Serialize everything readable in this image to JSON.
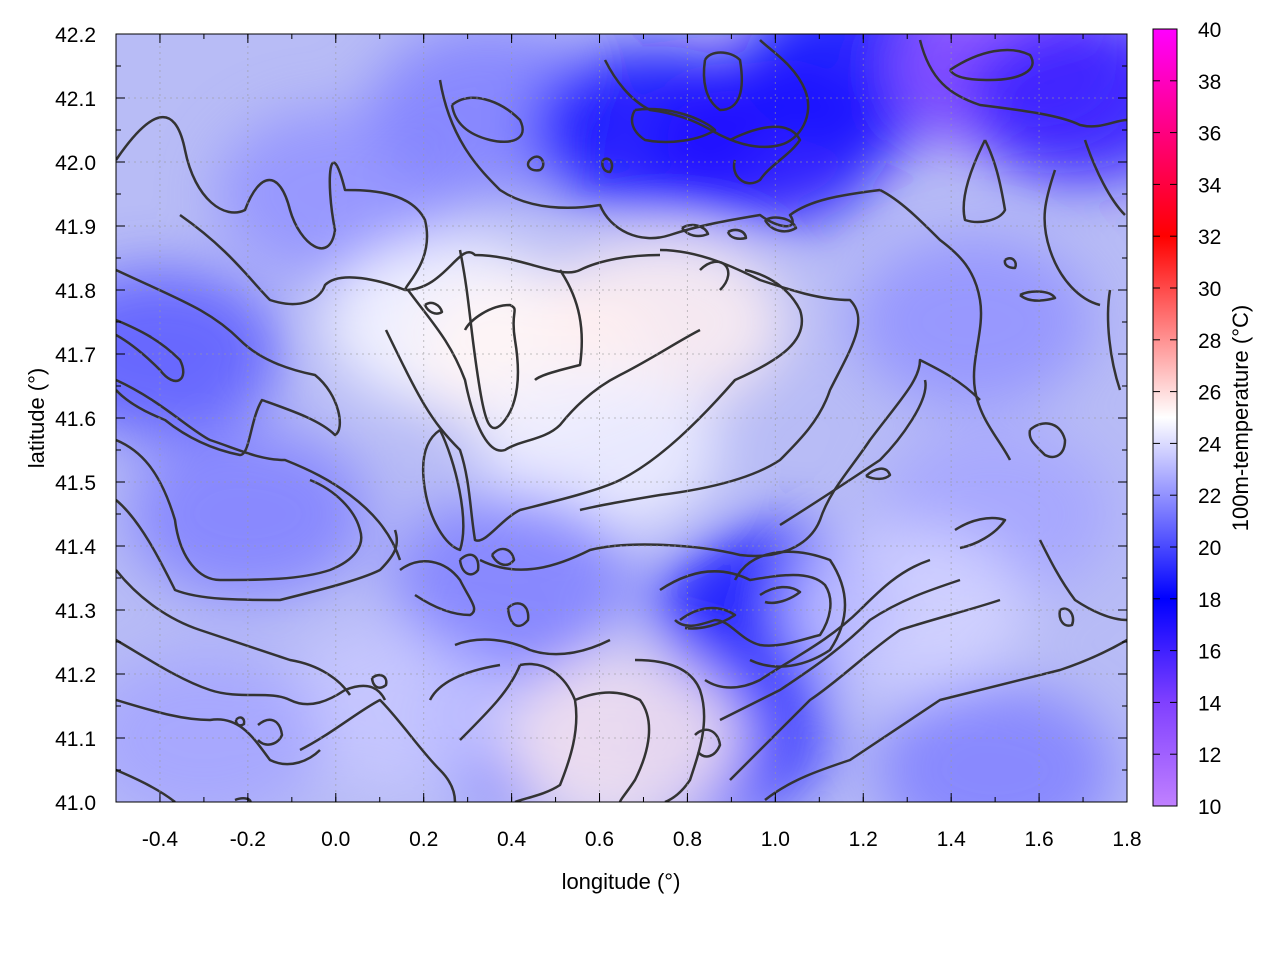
{
  "chart_data": {
    "type": "heatmap",
    "xlabel": "longitude (°)",
    "ylabel": "latitude (°)",
    "colorbar_label": "100m-temperature (°C)",
    "xlim": [
      -0.5,
      1.8
    ],
    "ylim": [
      41.0,
      42.2
    ],
    "x_ticks": [
      -0.4,
      -0.2,
      0.0,
      0.2,
      0.4,
      0.6,
      0.8,
      1.0,
      1.2,
      1.4,
      1.6,
      1.8
    ],
    "x_tick_labels": [
      "-0.4",
      "-0.2",
      "0.0",
      "0.2",
      "0.4",
      "0.6",
      "0.8",
      "1.0",
      "1.2",
      "1.4",
      "1.6",
      "1.8"
    ],
    "y_ticks": [
      41.0,
      41.1,
      41.2,
      41.3,
      41.4,
      41.5,
      41.6,
      41.7,
      41.8,
      41.9,
      42.0,
      42.1,
      42.2
    ],
    "y_tick_labels": [
      "41.0",
      "41.1",
      "41.2",
      "41.3",
      "41.4",
      "41.5",
      "41.6",
      "41.7",
      "41.8",
      "41.9",
      "42.0",
      "42.1",
      "42.2"
    ],
    "colorbar_range": [
      10,
      40
    ],
    "colorbar_ticks": [
      10,
      12,
      14,
      16,
      18,
      20,
      22,
      24,
      26,
      28,
      30,
      32,
      34,
      36,
      38,
      40
    ],
    "colorbar_tick_labels": [
      "10",
      "12",
      "14",
      "16",
      "18",
      "20",
      "22",
      "24",
      "26",
      "28",
      "30",
      "32",
      "34",
      "36",
      "38",
      "40"
    ],
    "colormap": [
      {
        "value": 10,
        "color": "#c080ff"
      },
      {
        "value": 14,
        "color": "#8040ff"
      },
      {
        "value": 18,
        "color": "#0000ff"
      },
      {
        "value": 25,
        "color": "#ffffff"
      },
      {
        "value": 32,
        "color": "#ff0000"
      },
      {
        "value": 40,
        "color": "#ff00ff"
      }
    ],
    "grid": true,
    "regions": [
      {
        "lon": -0.4,
        "lat": 41.7,
        "t": 20.5
      },
      {
        "lon": -0.2,
        "lat": 41.45,
        "t": 21.5
      },
      {
        "lon": 0.0,
        "lat": 41.95,
        "t": 22.0
      },
      {
        "lon": 0.25,
        "lat": 41.75,
        "t": 24.8
      },
      {
        "lon": 0.45,
        "lat": 41.7,
        "t": 25.3
      },
      {
        "lon": 0.75,
        "lat": 41.75,
        "t": 25.4
      },
      {
        "lon": 0.6,
        "lat": 41.55,
        "t": 24.6
      },
      {
        "lon": 0.35,
        "lat": 42.08,
        "t": 21.5
      },
      {
        "lon": 0.72,
        "lat": 42.05,
        "t": 17.5
      },
      {
        "lon": 0.98,
        "lat": 42.03,
        "t": 17.0
      },
      {
        "lon": 1.2,
        "lat": 42.15,
        "t": 17.5
      },
      {
        "lon": 1.55,
        "lat": 42.15,
        "t": 12.5
      },
      {
        "lon": 1.7,
        "lat": 42.1,
        "t": 16.5
      },
      {
        "lon": 1.45,
        "lat": 41.75,
        "t": 22.0
      },
      {
        "lon": 1.5,
        "lat": 41.45,
        "t": 22.5
      },
      {
        "lon": 1.0,
        "lat": 41.3,
        "t": 18.5
      },
      {
        "lon": 0.85,
        "lat": 41.1,
        "t": 19.5
      },
      {
        "lon": 0.45,
        "lat": 41.12,
        "t": 21.0
      },
      {
        "lon": 0.65,
        "lat": 41.1,
        "t": 25.5
      },
      {
        "lon": 0.15,
        "lat": 41.15,
        "t": 23.5
      },
      {
        "lon": 1.5,
        "lat": 41.05,
        "t": 21.5
      },
      {
        "lon": 1.3,
        "lat": 41.3,
        "t": 23.8
      },
      {
        "lon": -0.3,
        "lat": 41.1,
        "t": 22.5
      },
      {
        "lon": 0.4,
        "lat": 41.35,
        "t": 21.5
      }
    ]
  }
}
